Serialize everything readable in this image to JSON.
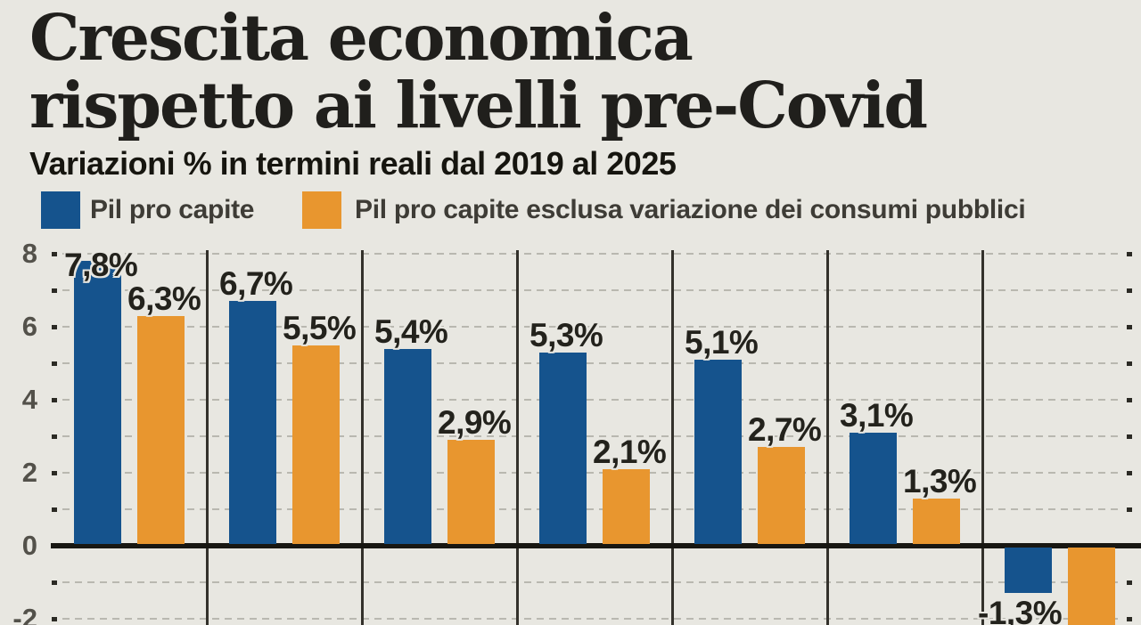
{
  "header": {
    "title_line1": "Crescita economica",
    "title_line2": "rispetto ai livelli pre-Covid",
    "subtitle": "Variazioni % in termini reali dal 2019 al 2025"
  },
  "legend": {
    "items": [
      {
        "label": "Pil pro capite",
        "color": "#15538d"
      },
      {
        "label": "Pil pro capite esclusa variazione dei consumi pubblici",
        "color": "#e8962f"
      }
    ]
  },
  "chart_data": {
    "type": "bar",
    "title": "Crescita economica rispetto ai livelli pre-Covid",
    "subtitle": "Variazioni % in termini reali dal 2019 al 2025",
    "value_unit": "percent",
    "legend_position": "top",
    "grid": "dashed horizontal lines at every integer, solid vertical group separators",
    "y_axis": {
      "tick_labels": [
        "8",
        "6",
        "4",
        "2",
        "0",
        "-2"
      ],
      "tick_values": [
        8,
        6,
        4,
        2,
        0,
        -2
      ],
      "gridline_values": [
        8,
        7,
        6,
        5,
        4,
        3,
        2,
        1,
        -1,
        -2
      ],
      "visible_range": [
        -2.2,
        8.1
      ]
    },
    "series": [
      {
        "name": "Pil pro capite",
        "color": "#15538d",
        "values": [
          7.8,
          6.7,
          5.4,
          5.3,
          5.1,
          3.1,
          -1.3
        ]
      },
      {
        "name": "Pil pro capite esclusa variazione dei consumi pubblici",
        "color": "#e8962f",
        "values": [
          6.3,
          5.5,
          2.9,
          2.1,
          2.7,
          1.3,
          null
        ]
      }
    ],
    "bar_labels": [
      [
        "7,8%",
        "6,3%"
      ],
      [
        "6,7%",
        "5,5%"
      ],
      [
        "5,4%",
        "2,9%"
      ],
      [
        "5,3%",
        "2,1%"
      ],
      [
        "5,1%",
        "2,7%"
      ],
      [
        "3,1%",
        "1,3%"
      ],
      [
        "-1,3%",
        null
      ]
    ],
    "notes": "Category labels are cropped out of the bottom of the frame; the last orange bar extends below the visible frame and its value label is not visible."
  },
  "colors": {
    "background": "#e8e7e1",
    "blue": "#15538d",
    "orange": "#e8962f",
    "zero_axis": "#181712",
    "grid": "#b9b8b0",
    "value_label_text": "#23221c"
  }
}
